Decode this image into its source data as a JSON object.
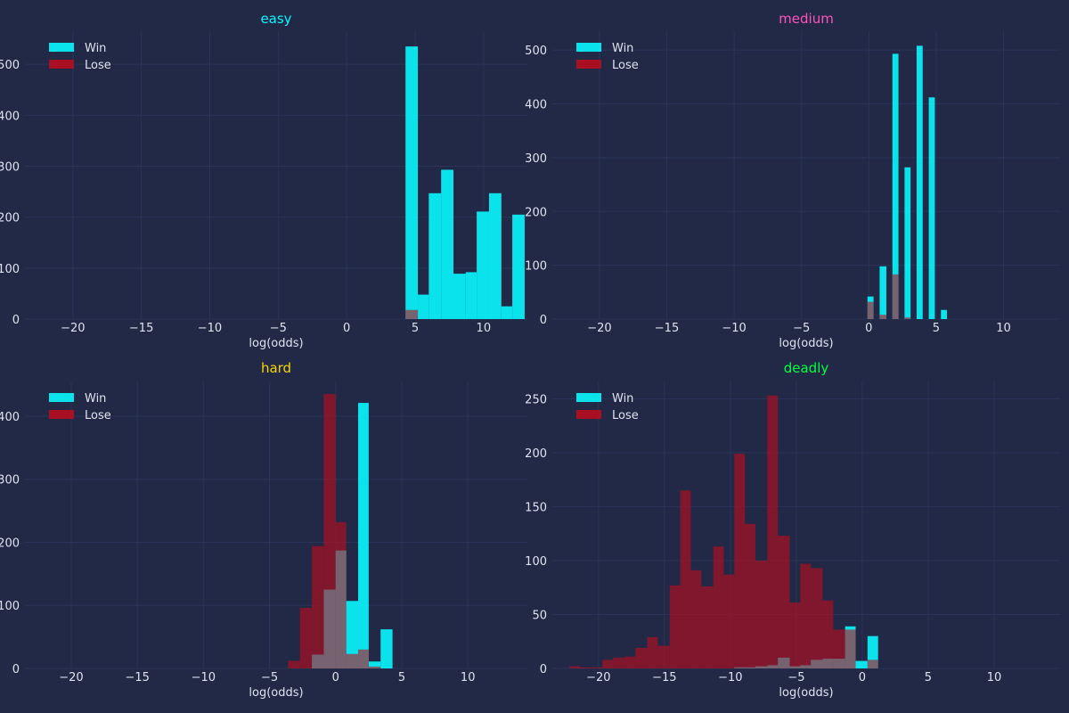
{
  "colors": {
    "background": "#212946",
    "grid": "#2a3459",
    "text": "#dfe3ee",
    "win": "#08f7fe",
    "lose": "#c00b1c"
  },
  "chart_data": [
    {
      "type": "bar",
      "title": "easy",
      "title_color": "#08f7fe",
      "xlabel": "log(odds)",
      "ylabel": "",
      "xlim": [
        -23.5,
        13.2
      ],
      "ylim": [
        0,
        565
      ],
      "xticks": [
        -20,
        -15,
        -10,
        -5,
        0,
        5,
        10
      ],
      "yticks": [
        0,
        100,
        200,
        300,
        400,
        500
      ],
      "grid": true,
      "legend_position": "top-left",
      "series": [
        {
          "name": "Win",
          "color": "#08f7fe",
          "opacity": 0.9,
          "bins": [
            [
              4.3,
              5.2,
              535
            ],
            [
              5.2,
              6.0,
              48
            ],
            [
              6.0,
              6.9,
              247
            ],
            [
              6.9,
              7.8,
              293
            ],
            [
              7.8,
              8.7,
              89
            ],
            [
              8.7,
              9.5,
              92
            ],
            [
              9.5,
              10.4,
              211
            ],
            [
              10.4,
              11.3,
              247
            ],
            [
              11.3,
              12.1,
              25
            ],
            [
              12.1,
              13.0,
              205
            ]
          ]
        },
        {
          "name": "Lose",
          "color": "#c00b1c",
          "opacity": 0.6,
          "bins": [
            [
              4.3,
              5.2,
              18
            ]
          ]
        }
      ]
    },
    {
      "type": "bar",
      "title": "medium",
      "title_color": "#fe53bb",
      "xlabel": "log(odds)",
      "ylabel": "",
      "xlim": [
        -23.5,
        14.2
      ],
      "ylim": [
        0,
        535
      ],
      "xticks": [
        -20,
        -15,
        -10,
        -5,
        0,
        5,
        10
      ],
      "yticks": [
        0,
        100,
        200,
        300,
        400,
        500
      ],
      "grid": true,
      "legend_position": "top-left",
      "series": [
        {
          "name": "Win",
          "color": "#08f7fe",
          "opacity": 0.9,
          "bins": [
            [
              -0.1,
              0.35,
              42
            ],
            [
              0.35,
              0.8,
              0
            ],
            [
              0.8,
              1.3,
              98
            ],
            [
              1.3,
              1.75,
              0
            ],
            [
              1.75,
              2.2,
              493
            ],
            [
              2.2,
              2.65,
              0
            ],
            [
              2.65,
              3.1,
              282
            ],
            [
              3.1,
              3.55,
              0
            ],
            [
              3.55,
              4.0,
              508
            ],
            [
              4.0,
              4.45,
              0
            ],
            [
              4.45,
              4.9,
              412
            ],
            [
              4.9,
              5.35,
              0
            ],
            [
              5.35,
              5.8,
              17
            ]
          ]
        },
        {
          "name": "Lose",
          "color": "#c00b1c",
          "opacity": 0.6,
          "bins": [
            [
              -0.1,
              0.35,
              32
            ],
            [
              0.35,
              0.8,
              0
            ],
            [
              0.8,
              1.3,
              8
            ],
            [
              1.3,
              1.75,
              0
            ],
            [
              1.75,
              2.2,
              83
            ],
            [
              2.2,
              2.65,
              0
            ],
            [
              2.65,
              3.1,
              3
            ],
            [
              3.1,
              3.55,
              0
            ],
            [
              3.55,
              4.0,
              0
            ]
          ]
        }
      ]
    },
    {
      "type": "bar",
      "title": "hard",
      "title_color": "#f5d300",
      "xlabel": "log(odds)",
      "ylabel": "",
      "xlim": [
        -23.5,
        14.5
      ],
      "ylim": [
        0,
        455
      ],
      "xticks": [
        -20,
        -15,
        -10,
        -5,
        0,
        5,
        10
      ],
      "yticks": [
        0,
        100,
        200,
        300,
        400
      ],
      "grid": true,
      "legend_position": "top-left",
      "series": [
        {
          "name": "Win",
          "color": "#08f7fe",
          "opacity": 0.9,
          "bins": [
            [
              -1.8,
              -0.9,
              22
            ],
            [
              -0.9,
              0.0,
              125
            ],
            [
              0.0,
              0.8,
              187
            ],
            [
              0.8,
              1.7,
              107
            ],
            [
              1.7,
              2.5,
              421
            ],
            [
              2.5,
              3.4,
              11
            ],
            [
              3.4,
              4.3,
              62
            ]
          ]
        },
        {
          "name": "Lose",
          "color": "#c00b1c",
          "opacity": 0.6,
          "bins": [
            [
              -3.6,
              -2.7,
              12
            ],
            [
              -2.7,
              -1.8,
              96
            ],
            [
              -1.8,
              -0.9,
              194
            ],
            [
              -0.9,
              0.0,
              435
            ],
            [
              0.0,
              0.8,
              232
            ],
            [
              0.8,
              1.7,
              23
            ],
            [
              1.7,
              2.5,
              30
            ],
            [
              2.5,
              3.4,
              3
            ]
          ]
        }
      ]
    },
    {
      "type": "bar",
      "title": "deadly",
      "title_color": "#00ff41",
      "xlabel": "log(odds)",
      "ylabel": "",
      "xlim": [
        -23.5,
        15
      ],
      "ylim": [
        0,
        266
      ],
      "xticks": [
        -20,
        -15,
        -10,
        -5,
        0,
        5,
        10
      ],
      "yticks": [
        0,
        50,
        100,
        150,
        200,
        250
      ],
      "grid": true,
      "legend_position": "top-left",
      "series": [
        {
          "name": "Win",
          "color": "#08f7fe",
          "opacity": 0.9,
          "bins": [
            [
              -12.2,
              -11.3,
              0
            ],
            [
              -9.7,
              -8.9,
              1
            ],
            [
              -8.9,
              -8.1,
              1
            ],
            [
              -8.1,
              -7.2,
              2
            ],
            [
              -7.2,
              -6.4,
              3
            ],
            [
              -6.4,
              -5.5,
              10
            ],
            [
              -5.5,
              -4.7,
              2
            ],
            [
              -4.7,
              -3.9,
              3
            ],
            [
              -3.9,
              -3.0,
              8
            ],
            [
              -3.0,
              -2.2,
              9
            ],
            [
              -2.2,
              -1.3,
              9
            ],
            [
              -1.3,
              -0.5,
              39
            ],
            [
              -0.5,
              0.4,
              7
            ],
            [
              0.4,
              1.2,
              30
            ]
          ]
        },
        {
          "name": "Lose",
          "color": "#c00b1c",
          "opacity": 0.6,
          "bins": [
            [
              -22.2,
              -21.4,
              2
            ],
            [
              -21.4,
              -20.5,
              1
            ],
            [
              -20.5,
              -19.7,
              1
            ],
            [
              -19.7,
              -18.9,
              8
            ],
            [
              -18.9,
              -18.0,
              10
            ],
            [
              -18.0,
              -17.2,
              11
            ],
            [
              -17.2,
              -16.3,
              19
            ],
            [
              -16.3,
              -15.5,
              29
            ],
            [
              -15.5,
              -14.6,
              21
            ],
            [
              -14.6,
              -13.8,
              77
            ],
            [
              -13.8,
              -13.0,
              165
            ],
            [
              -13.0,
              -12.2,
              91
            ],
            [
              -12.2,
              -11.3,
              76
            ],
            [
              -11.3,
              -10.5,
              113
            ],
            [
              -10.5,
              -9.7,
              87
            ],
            [
              -9.7,
              -8.9,
              199
            ],
            [
              -8.9,
              -8.1,
              134
            ],
            [
              -8.1,
              -7.2,
              100
            ],
            [
              -7.2,
              -6.4,
              253
            ],
            [
              -6.4,
              -5.5,
              123
            ],
            [
              -5.5,
              -4.7,
              61
            ],
            [
              -4.7,
              -3.9,
              97
            ],
            [
              -3.9,
              -3.0,
              93
            ],
            [
              -3.0,
              -2.2,
              63
            ],
            [
              -2.2,
              -1.3,
              36
            ],
            [
              -1.3,
              -0.5,
              36
            ],
            [
              -0.5,
              0.4,
              0
            ],
            [
              0.4,
              1.2,
              8
            ]
          ]
        }
      ]
    }
  ]
}
